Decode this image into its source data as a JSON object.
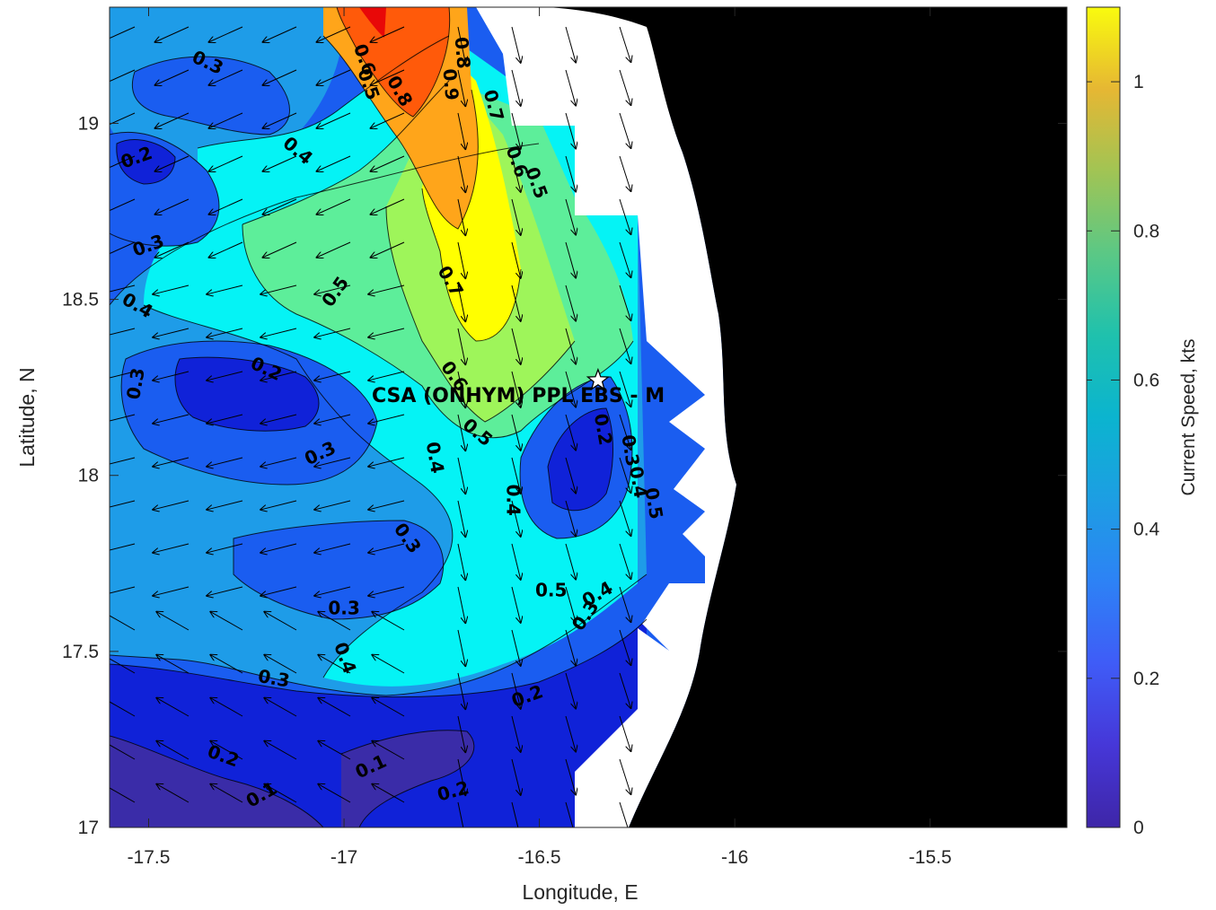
{
  "chart_data": {
    "type": "heatmap",
    "subtype": "filled-contour with current vectors",
    "title": "",
    "xlabel": "Longitude, E",
    "ylabel": "Latitude, N",
    "xlim": [
      -17.6,
      -15.15
    ],
    "ylim": [
      17.0,
      19.33
    ],
    "xticks": [
      -17.5,
      -17,
      -16.5,
      -16,
      -15.5
    ],
    "xtick_labels": [
      "-17.5",
      "-17",
      "-16.5",
      "-16",
      "-15.5"
    ],
    "yticks": [
      17,
      17.5,
      18,
      18.5,
      19
    ],
    "ytick_labels": [
      "17",
      "17.5",
      "18",
      "18.5",
      "19"
    ],
    "colorbar": {
      "label": "Current Speed, kts",
      "range": [
        0,
        1.1
      ],
      "ticks": [
        0,
        0.2,
        0.4,
        0.6,
        0.8,
        1
      ],
      "tick_labels": [
        "0",
        "0.2",
        "0.4",
        "0.6",
        "0.8",
        "1"
      ],
      "colormap": "parula"
    },
    "contour_levels": [
      0.1,
      0.2,
      0.3,
      0.4,
      0.5,
      0.6,
      0.7,
      0.8,
      0.9,
      1.0
    ],
    "fill_colors": [
      "#3a2ca8",
      "#1022d8",
      "#1a5df0",
      "#1e9ce8",
      "#05f3f5",
      "#5dee9a",
      "#9ef55a",
      "#ffff00",
      "#ffa51a",
      "#ff5a0a",
      "#e80808"
    ],
    "contour_labels": [
      {
        "text": "0.3",
        "lon": -17.35,
        "lat": 19.17,
        "angle": 25
      },
      {
        "text": "0.6",
        "lon": -16.95,
        "lat": 19.18,
        "angle": 70
      },
      {
        "text": "0.5",
        "lon": -16.94,
        "lat": 19.11,
        "angle": 70
      },
      {
        "text": "0.8",
        "lon": -16.86,
        "lat": 19.09,
        "angle": 60
      },
      {
        "text": "0.9",
        "lon": -16.73,
        "lat": 19.11,
        "angle": 85
      },
      {
        "text": "0.8",
        "lon": -16.7,
        "lat": 19.2,
        "angle": 85
      },
      {
        "text": "0.7",
        "lon": -16.62,
        "lat": 19.05,
        "angle": 75
      },
      {
        "text": "0.4",
        "lon": -17.12,
        "lat": 18.92,
        "angle": 40
      },
      {
        "text": "0.2",
        "lon": -17.53,
        "lat": 18.9,
        "angle": -20
      },
      {
        "text": "0.6",
        "lon": -16.56,
        "lat": 18.89,
        "angle": 70
      },
      {
        "text": "0.5",
        "lon": -16.51,
        "lat": 18.83,
        "angle": 70
      },
      {
        "text": "0.3",
        "lon": -17.5,
        "lat": 18.65,
        "angle": -20
      },
      {
        "text": "0.5",
        "lon": -17.02,
        "lat": 18.52,
        "angle": -55
      },
      {
        "text": "0.7",
        "lon": -16.73,
        "lat": 18.55,
        "angle": 60
      },
      {
        "text": "0.4",
        "lon": -17.53,
        "lat": 18.48,
        "angle": 30
      },
      {
        "text": "0.3",
        "lon": -17.53,
        "lat": 18.26,
        "angle": -80
      },
      {
        "text": "0.2",
        "lon": -17.2,
        "lat": 18.3,
        "angle": 25
      },
      {
        "text": "0.6",
        "lon": -16.72,
        "lat": 18.28,
        "angle": 55
      },
      {
        "text": "0.5",
        "lon": -16.66,
        "lat": 18.12,
        "angle": 40
      },
      {
        "text": "0.3",
        "lon": -17.06,
        "lat": 18.06,
        "angle": -25
      },
      {
        "text": "0.4",
        "lon": -16.77,
        "lat": 18.05,
        "angle": 80
      },
      {
        "text": "0.2",
        "lon": -16.34,
        "lat": 18.13,
        "angle": 80
      },
      {
        "text": "0.3",
        "lon": -16.27,
        "lat": 18.07,
        "angle": 80
      },
      {
        "text": "0.4",
        "lon": -16.25,
        "lat": 17.98,
        "angle": 80
      },
      {
        "text": "0.5",
        "lon": -16.21,
        "lat": 17.92,
        "angle": 80
      },
      {
        "text": "0.4",
        "lon": -16.57,
        "lat": 17.93,
        "angle": 90
      },
      {
        "text": "0.3",
        "lon": -16.84,
        "lat": 17.82,
        "angle": 55
      },
      {
        "text": "0.5",
        "lon": -16.47,
        "lat": 17.67,
        "angle": 0
      },
      {
        "text": "0.4",
        "lon": -16.35,
        "lat": 17.66,
        "angle": -30
      },
      {
        "text": "0.3",
        "lon": -16.38,
        "lat": 17.6,
        "angle": -55
      },
      {
        "text": "0.3",
        "lon": -17.0,
        "lat": 17.62,
        "angle": 0
      },
      {
        "text": "0.4",
        "lon": -17.0,
        "lat": 17.48,
        "angle": 70
      },
      {
        "text": "0.3",
        "lon": -17.18,
        "lat": 17.42,
        "angle": 10
      },
      {
        "text": "0.2",
        "lon": -16.53,
        "lat": 17.37,
        "angle": -20
      },
      {
        "text": "0.2",
        "lon": -17.31,
        "lat": 17.2,
        "angle": 20
      },
      {
        "text": "0.1",
        "lon": -16.93,
        "lat": 17.17,
        "angle": -25
      },
      {
        "text": "0.2",
        "lon": -16.72,
        "lat": 17.1,
        "angle": -15
      },
      {
        "text": "0.1",
        "lon": -17.21,
        "lat": 17.09,
        "angle": -30
      }
    ],
    "annotation": {
      "text": "CSA (ONHYM) PPL EBS  - M",
      "marker": "star",
      "lon": -16.35,
      "lat": 18.27
    },
    "land_color": "#000000",
    "nodata_color": "#ffffff"
  }
}
